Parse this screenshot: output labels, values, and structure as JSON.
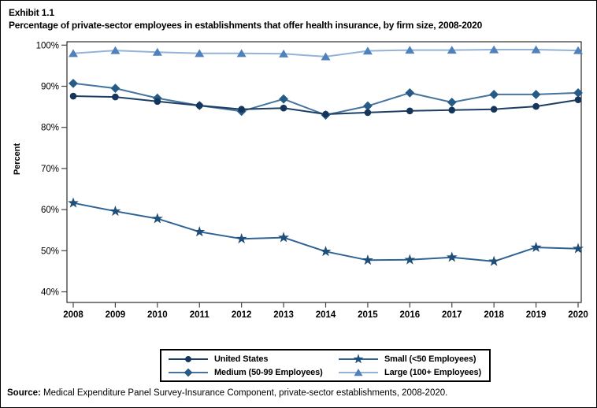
{
  "header": {
    "exhibit_label": "Exhibit 1.1",
    "title": "Percentage of private-sector employees in establishments that offer health insurance, by firm size, 2008-2020"
  },
  "chart_data": {
    "type": "line",
    "title": "Percentage of private-sector employees in establishments that offer health insurance, by firm size, 2008-2020",
    "xlabel": "",
    "ylabel": "Percent",
    "x": [
      2008,
      2009,
      2010,
      2011,
      2012,
      2013,
      2014,
      2015,
      2016,
      2017,
      2018,
      2019,
      2020
    ],
    "ylim": [
      40,
      100
    ],
    "y_ticks": [
      100,
      90,
      80,
      70,
      60,
      50,
      40
    ],
    "y_tick_suffix": "%",
    "grid": false,
    "legend_position": "bottom",
    "series": [
      {
        "name": "United States",
        "marker": "circle",
        "color": "#15365a",
        "line_color": "#1c3f63",
        "values": [
          87.6,
          87.4,
          86.3,
          85.3,
          84.4,
          84.7,
          83.2,
          83.6,
          84.0,
          84.2,
          84.4,
          85.1,
          86.7
        ]
      },
      {
        "name": "Medium (50-99 Employees)",
        "marker": "diamond",
        "color": "#275b87",
        "line_color": "#46749f",
        "values": [
          90.7,
          89.5,
          87.1,
          85.3,
          83.9,
          86.9,
          83.0,
          85.2,
          88.4,
          86.1,
          88.0,
          88.0,
          88.4
        ]
      },
      {
        "name": "Small (<50 Employees)",
        "marker": "star",
        "color": "#1f4e79",
        "line_color": "#2f6394",
        "values": [
          61.6,
          59.6,
          57.8,
          54.6,
          52.9,
          53.2,
          49.8,
          47.7,
          47.8,
          48.4,
          47.4,
          50.8,
          50.5
        ]
      },
      {
        "name": "Large (100+ Employees)",
        "marker": "triangle",
        "color": "#4f81bd",
        "line_color": "#94b3d6",
        "values": [
          98.0,
          98.7,
          98.3,
          98.0,
          98.0,
          97.9,
          97.2,
          98.6,
          98.8,
          98.8,
          98.9,
          98.9,
          98.7
        ]
      }
    ]
  },
  "legend": {
    "items": [
      {
        "label": "United States",
        "series_index": 0
      },
      {
        "label": "Small (<50 Employees)",
        "series_index": 2
      },
      {
        "label": "Medium (50-99 Employees)",
        "series_index": 1
      },
      {
        "label": "Large (100+ Employees)",
        "series_index": 3
      }
    ]
  },
  "source": {
    "label": "Source:",
    "text": " Medical Expenditure Panel Survey-Insurance Component, private-sector establishments, 2008-2020."
  }
}
